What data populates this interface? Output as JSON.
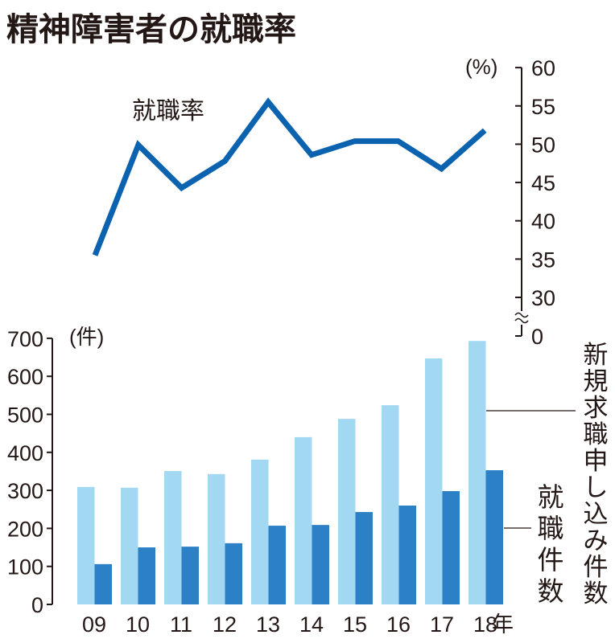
{
  "chart_data": [
    {
      "type": "line",
      "title": "精神障害者の就職率",
      "series_label": "就職率",
      "unit": "(%)",
      "categories": [
        "09",
        "10",
        "11",
        "12",
        "13",
        "14",
        "15",
        "16",
        "17",
        "18"
      ],
      "values": [
        35.5,
        49.9,
        44.3,
        47.8,
        55.5,
        48.6,
        50.4,
        50.4,
        46.8,
        51.8
      ],
      "ylim": [
        30,
        60
      ],
      "yticks": [
        "60",
        "55",
        "50",
        "45",
        "40",
        "35",
        "30",
        "0"
      ],
      "axis": "right",
      "axis_break": true
    },
    {
      "type": "bar",
      "unit": "(件)",
      "xlabel_suffix": "年",
      "categories": [
        "09",
        "10",
        "11",
        "12",
        "13",
        "14",
        "15",
        "16",
        "17",
        "18"
      ],
      "series": [
        {
          "name": "新規求職申し込み件数",
          "values": [
            309,
            307,
            351,
            343,
            381,
            440,
            488,
            524,
            647,
            693
          ],
          "color": "#a3d8f3"
        },
        {
          "name": "就職件数",
          "values": [
            106,
            150,
            152,
            161,
            207,
            209,
            243,
            260,
            298,
            353
          ],
          "color": "#2c80c5"
        }
      ],
      "ylim": [
        0,
        700
      ],
      "yticks": [
        "700",
        "600",
        "500",
        "400",
        "300",
        "200",
        "100",
        "0"
      ]
    }
  ],
  "colors": {
    "line": "#0b63b0"
  }
}
